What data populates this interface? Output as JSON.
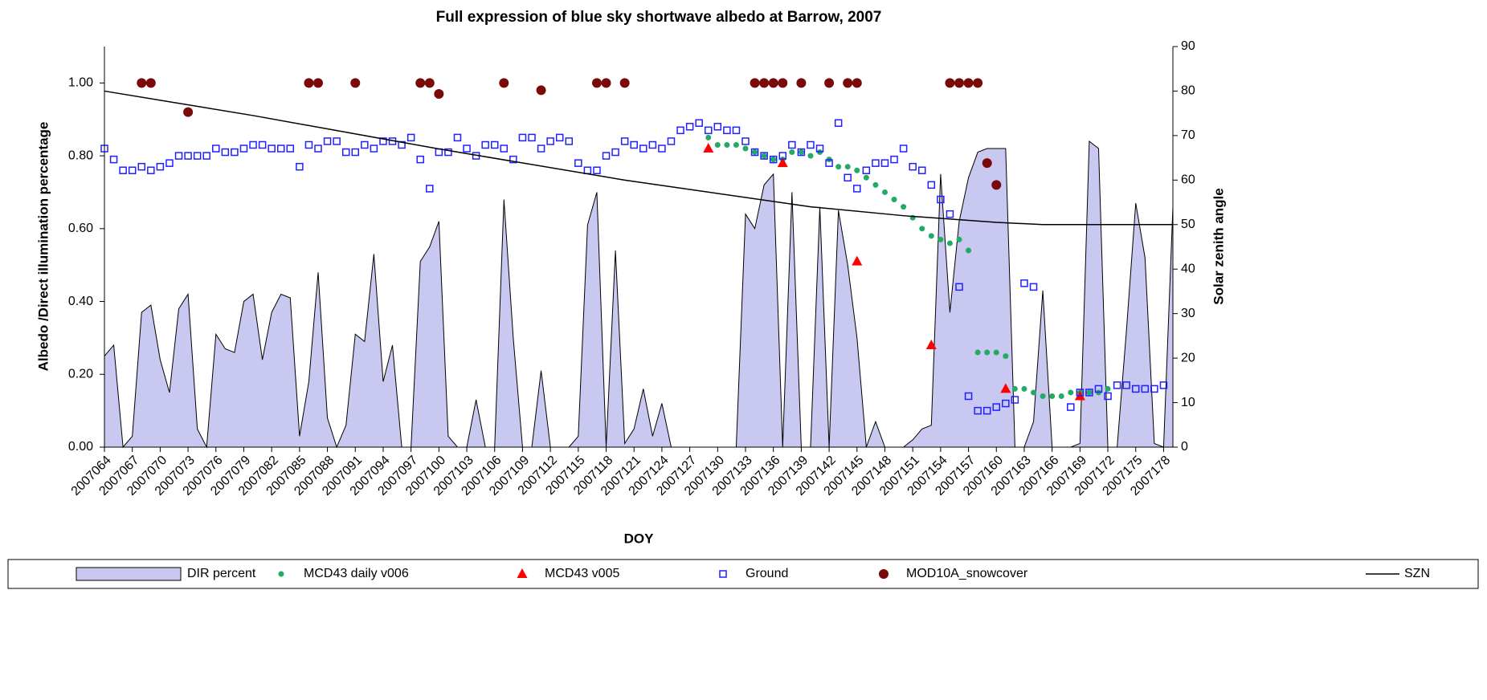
{
  "chart_data": {
    "type": "combo",
    "title": "Full expression of blue sky shortwave albedo at Barrow, 2007",
    "x_label": "DOY",
    "y_label": "Albedo /Direct illumination percentage",
    "y2_label": "Solar zenith angle",
    "xlim": [
      2007064,
      2007179
    ],
    "xticks": [
      2007064,
      2007067,
      2007070,
      2007073,
      2007076,
      2007079,
      2007082,
      2007085,
      2007088,
      2007091,
      2007094,
      2007097,
      2007100,
      2007103,
      2007106,
      2007109,
      2007112,
      2007115,
      2007118,
      2007121,
      2007124,
      2007127,
      2007130,
      2007133,
      2007136,
      2007139,
      2007142,
      2007145,
      2007148,
      2007151,
      2007154,
      2007157,
      2007160,
      2007163,
      2007166,
      2007169,
      2007172,
      2007175,
      2007178
    ],
    "ylim": [
      0,
      1.1
    ],
    "yticks": [
      {
        "value": 0,
        "label": "0.00"
      },
      {
        "value": 0.2,
        "label": "0.20"
      },
      {
        "value": 0.4,
        "label": "0.40"
      },
      {
        "value": 0.6,
        "label": "0.60"
      },
      {
        "value": 0.8,
        "label": "0.80"
      },
      {
        "value": 1,
        "label": "1.00"
      }
    ],
    "y2lim": [
      0,
      90
    ],
    "y2ticks": [
      0,
      10,
      20,
      30,
      40,
      50,
      60,
      70,
      80,
      90
    ],
    "legend": "bottom",
    "series": [
      {
        "name": "DIR percent",
        "type": "area",
        "color": "#c8c8f0",
        "x": [
          2007064,
          2007065,
          2007066,
          2007067,
          2007068,
          2007069,
          2007070,
          2007071,
          2007072,
          2007073,
          2007074,
          2007075,
          2007076,
          2007077,
          2007078,
          2007079,
          2007080,
          2007081,
          2007082,
          2007083,
          2007084,
          2007085,
          2007086,
          2007087,
          2007088,
          2007089,
          2007090,
          2007091,
          2007092,
          2007093,
          2007094,
          2007095,
          2007096,
          2007097,
          2007098,
          2007099,
          2007100,
          2007101,
          2007102,
          2007103,
          2007104,
          2007105,
          2007106,
          2007107,
          2007108,
          2007109,
          2007110,
          2007111,
          2007112,
          2007113,
          2007114,
          2007115,
          2007116,
          2007117,
          2007118,
          2007119,
          2007120,
          2007121,
          2007122,
          2007123,
          2007124,
          2007125,
          2007126,
          2007127,
          2007128,
          2007129,
          2007130,
          2007131,
          2007132,
          2007133,
          2007134,
          2007135,
          2007136,
          2007137,
          2007138,
          2007139,
          2007140,
          2007141,
          2007142,
          2007143,
          2007144,
          2007145,
          2007146,
          2007147,
          2007148,
          2007149,
          2007150,
          2007151,
          2007152,
          2007153,
          2007154,
          2007155,
          2007156,
          2007157,
          2007158,
          2007159,
          2007160,
          2007161,
          2007162,
          2007163,
          2007164,
          2007165,
          2007166,
          2007167,
          2007168,
          2007169,
          2007170,
          2007171,
          2007172,
          2007173,
          2007174,
          2007175,
          2007176,
          2007177,
          2007178,
          2007179
        ],
        "values": [
          0.25,
          0.28,
          0,
          0.03,
          0.37,
          0.39,
          0.24,
          0.15,
          0.38,
          0.42,
          0.05,
          0,
          0.31,
          0.27,
          0.26,
          0.4,
          0.42,
          0.24,
          0.37,
          0.42,
          0.41,
          0.03,
          0.18,
          0.48,
          0.08,
          0,
          0.06,
          0.31,
          0.29,
          0.53,
          0.18,
          0.28,
          0,
          0,
          0.51,
          0.55,
          0.62,
          0.03,
          0,
          0,
          0.13,
          0,
          0,
          0.68,
          0.3,
          0,
          0,
          0.21,
          0,
          0,
          0,
          0.03,
          0.61,
          0.7,
          0,
          0.54,
          0.01,
          0.05,
          0.16,
          0.03,
          0.12,
          0,
          0,
          0,
          0,
          0,
          0,
          0,
          0,
          0.64,
          0.6,
          0.72,
          0.75,
          0,
          0.7,
          0,
          0,
          0.66,
          0,
          0.65,
          0.5,
          0.3,
          0,
          0.07,
          0,
          0,
          0,
          0.02,
          0.05,
          0.06,
          0.75,
          0.37,
          0.62,
          0.74,
          0.81,
          0.82,
          0.82,
          0.82,
          0,
          0,
          0.07,
          0.43,
          0,
          0,
          0,
          0.01,
          0.84,
          0.82,
          0,
          0,
          0.32,
          0.67,
          0.52,
          0.01,
          0,
          0.66
        ]
      },
      {
        "name": "MCD43 daily v006",
        "type": "scatter",
        "marker": "dot",
        "color": "#22aa66",
        "x": [
          2007129,
          2007130,
          2007131,
          2007132,
          2007133,
          2007134,
          2007135,
          2007136,
          2007137,
          2007138,
          2007139,
          2007140,
          2007141,
          2007142,
          2007143,
          2007144,
          2007145,
          2007146,
          2007147,
          2007148,
          2007149,
          2007150,
          2007151,
          2007152,
          2007153,
          2007154,
          2007155,
          2007156,
          2007157,
          2007158,
          2007159,
          2007160,
          2007161,
          2007162,
          2007163,
          2007164,
          2007165,
          2007166,
          2007167,
          2007168,
          2007169,
          2007170,
          2007171,
          2007172
        ],
        "values": [
          0.85,
          0.83,
          0.83,
          0.83,
          0.82,
          0.81,
          0.8,
          0.79,
          0.79,
          0.81,
          0.81,
          0.8,
          0.81,
          0.79,
          0.77,
          0.77,
          0.76,
          0.74,
          0.72,
          0.7,
          0.68,
          0.66,
          0.63,
          0.6,
          0.58,
          0.57,
          0.56,
          0.57,
          0.54,
          0.26,
          0.26,
          0.26,
          0.25,
          0.16,
          0.16,
          0.15,
          0.14,
          0.14,
          0.14,
          0.15,
          0.15,
          0.15,
          0.15,
          0.16
        ]
      },
      {
        "name": "MCD43 v005",
        "type": "scatter",
        "marker": "triangle",
        "color": "#ff0000",
        "x": [
          2007129,
          2007137,
          2007145,
          2007153,
          2007161,
          2007169
        ],
        "values": [
          0.82,
          0.78,
          0.51,
          0.28,
          0.16,
          0.14
        ]
      },
      {
        "name": "Ground",
        "type": "scatter",
        "marker": "square",
        "color": "#2020ff",
        "x": [
          2007064,
          2007065,
          2007066,
          2007067,
          2007068,
          2007069,
          2007070,
          2007071,
          2007072,
          2007073,
          2007074,
          2007075,
          2007076,
          2007077,
          2007078,
          2007079,
          2007080,
          2007081,
          2007082,
          2007083,
          2007084,
          2007085,
          2007086,
          2007087,
          2007088,
          2007089,
          2007090,
          2007091,
          2007092,
          2007093,
          2007094,
          2007095,
          2007096,
          2007097,
          2007098,
          2007099,
          2007100,
          2007101,
          2007102,
          2007103,
          2007104,
          2007105,
          2007106,
          2007107,
          2007108,
          2007109,
          2007110,
          2007111,
          2007112,
          2007113,
          2007114,
          2007115,
          2007116,
          2007117,
          2007118,
          2007119,
          2007120,
          2007121,
          2007122,
          2007123,
          2007124,
          2007125,
          2007126,
          2007127,
          2007128,
          2007129,
          2007130,
          2007131,
          2007132,
          2007133,
          2007134,
          2007135,
          2007136,
          2007137,
          2007138,
          2007139,
          2007140,
          2007141,
          2007142,
          2007143,
          2007144,
          2007145,
          2007146,
          2007147,
          2007148,
          2007149,
          2007150,
          2007151,
          2007152,
          2007153,
          2007154,
          2007155,
          2007156,
          2007157,
          2007158,
          2007159,
          2007160,
          2007161,
          2007162,
          2007163,
          2007164,
          2007165,
          2007166,
          2007167,
          2007168,
          2007169,
          2007170,
          2007171,
          2007172,
          2007173,
          2007174,
          2007175,
          2007176,
          2007177,
          2007178
        ],
        "values": [
          0.82,
          0.79,
          0.76,
          0.76,
          0.77,
          0.76,
          0.77,
          0.78,
          0.8,
          0.8,
          0.8,
          0.8,
          0.82,
          0.81,
          0.81,
          0.82,
          0.83,
          0.83,
          0.82,
          0.82,
          0.82,
          0.77,
          0.83,
          0.82,
          0.84,
          0.84,
          0.81,
          0.81,
          0.83,
          0.82,
          0.84,
          0.84,
          0.83,
          0.85,
          0.79,
          0.71,
          0.81,
          0.81,
          0.85,
          0.82,
          0.8,
          0.83,
          0.83,
          0.82,
          0.79,
          0.85,
          0.85,
          0.82,
          0.84,
          0.85,
          0.84,
          0.78,
          0.76,
          0.76,
          0.8,
          0.81,
          0.84,
          0.83,
          0.82,
          0.83,
          0.82,
          0.84,
          0.87,
          0.88,
          0.89,
          0.87,
          0.88,
          0.87,
          0.87,
          0.84,
          0.81,
          0.8,
          0.79,
          0.8,
          0.83,
          0.81,
          0.83,
          0.82,
          0.78,
          0.89,
          0.74,
          0.71,
          0.76,
          0.78,
          0.78,
          0.79,
          0.82,
          0.77,
          0.76,
          0.72,
          0.68,
          0.64,
          0.44,
          0.14,
          0.1,
          0.1,
          0.11,
          0.12,
          0.13,
          0.45,
          0.44,
          null,
          null,
          null,
          0.11,
          0.15,
          0.15,
          0.16,
          0.14,
          0.17,
          0.17,
          0.16,
          0.16,
          0.16,
          0.17
        ]
      },
      {
        "name": "MOD10A_snowcover",
        "type": "scatter",
        "marker": "circle",
        "color": "#7a0a0a",
        "x": [
          2007068,
          2007069,
          2007073,
          2007086,
          2007087,
          2007091,
          2007098,
          2007099,
          2007100,
          2007107,
          2007111,
          2007117,
          2007118,
          2007120,
          2007134,
          2007135,
          2007136,
          2007137,
          2007139,
          2007142,
          2007144,
          2007145,
          2007155,
          2007156,
          2007157,
          2007158,
          2007159,
          2007160
        ],
        "values": [
          1,
          1,
          0.92,
          1,
          1,
          1,
          1,
          1,
          0.97,
          1,
          0.98,
          1,
          1,
          1,
          1,
          1,
          1,
          1,
          1,
          1,
          1,
          1,
          1,
          1,
          1,
          1,
          0.78,
          0.72
        ]
      },
      {
        "name": "SZN",
        "type": "line",
        "axis": "y2",
        "color": "#000000",
        "x": [
          2007064,
          2007080,
          2007100,
          2007120,
          2007140,
          2007150,
          2007160,
          2007165,
          2007179
        ],
        "values": [
          80,
          74.5,
          67,
          60,
          54,
          52,
          50.5,
          50,
          50
        ]
      }
    ]
  }
}
